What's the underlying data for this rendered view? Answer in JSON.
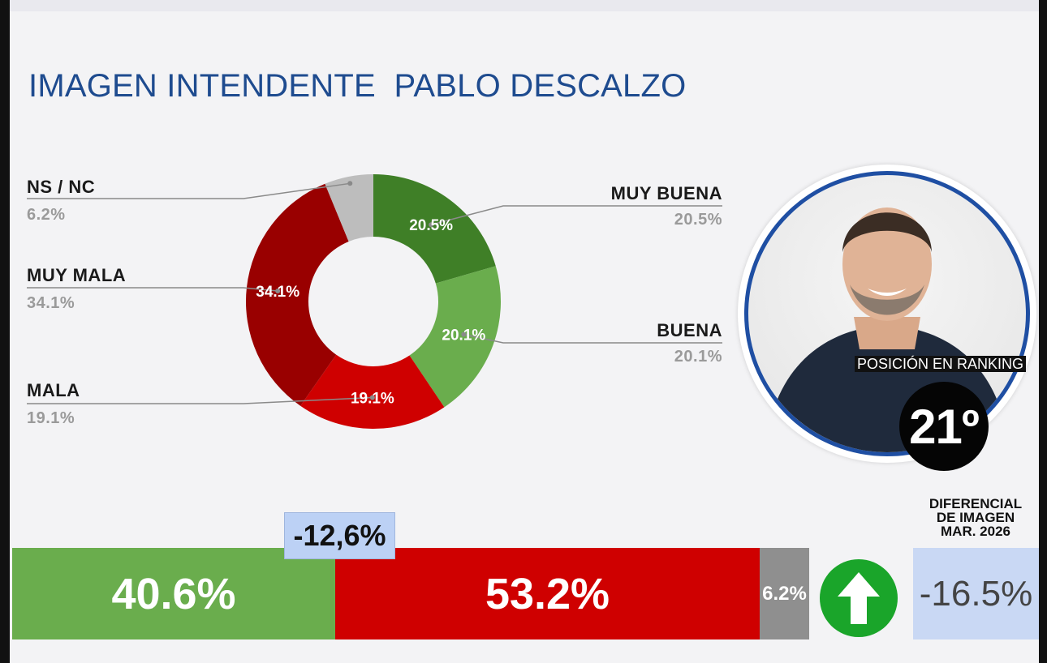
{
  "title": "IMAGEN INTENDENTE  PABLO DESCALZO",
  "chart_data": {
    "type": "pie",
    "slices": [
      {
        "label": "MUY BUENA",
        "value": 20.5,
        "display": "20.5%",
        "color": "#3f7f27"
      },
      {
        "label": "BUENA",
        "value": 20.1,
        "display": "20.1%",
        "color": "#6aad4d"
      },
      {
        "label": "MALA",
        "value": 19.1,
        "display": "19.1%",
        "color": "#cf0000"
      },
      {
        "label": "MUY MALA",
        "value": 34.1,
        "display": "34.1%",
        "color": "#990000"
      },
      {
        "label": "NS / NC",
        "value": 6.2,
        "display": "6.2%",
        "color": "#bdbdbd"
      }
    ]
  },
  "ranking": {
    "label": "POSICIÓN EN RANKING",
    "value": "21º"
  },
  "summary_bar": {
    "positive": {
      "value": 40.6,
      "label": "40.6%",
      "color": "#6aad4d"
    },
    "negative": {
      "value": 53.2,
      "label": "53.2%",
      "color": "#cf0000"
    },
    "ns": {
      "value": 6.2,
      "label": "6.2%",
      "color": "#8f8f8f"
    },
    "difference": "-12,6%"
  },
  "trend_icon": "up-arrow-icon",
  "differential": {
    "title_lines": [
      "DIFERENCIAL",
      "DE IMAGEN",
      "MAR. 2026"
    ],
    "value": "-16.5%"
  }
}
